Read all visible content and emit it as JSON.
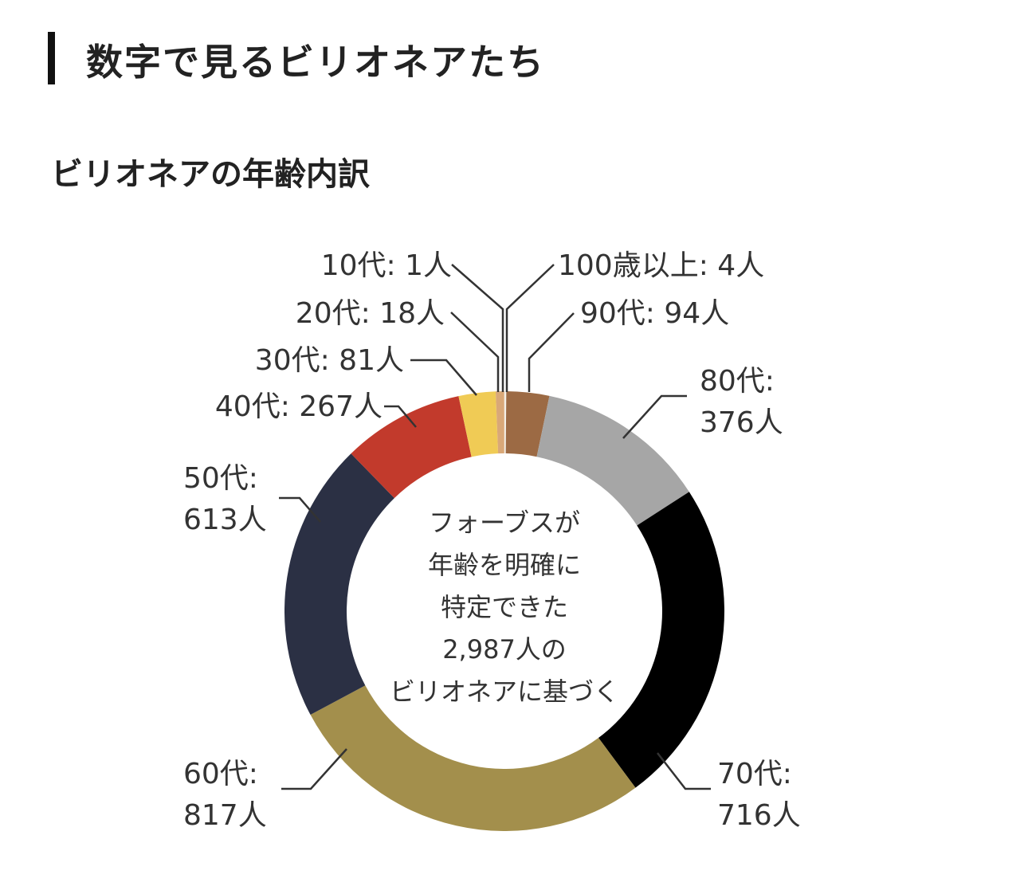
{
  "header": {
    "title": "数字で見るビリオネアたち"
  },
  "chart_data": {
    "type": "pie",
    "variant": "donut",
    "title": "ビリオネアの年齢内訳",
    "center_text": [
      "フォーブスが",
      "年齢を明確に",
      "特定できた",
      "2,987人の",
      "ビリオネアに基づく"
    ],
    "unit": "人",
    "categories": [
      "100歳以上",
      "90代",
      "80代",
      "70代",
      "60代",
      "50代",
      "40代",
      "30代",
      "20代",
      "10代"
    ],
    "values": [
      4,
      94,
      376,
      716,
      817,
      613,
      267,
      81,
      18,
      1
    ],
    "labels": [
      "100歳以上: 4人",
      "90代: 94人",
      "80代:|376人",
      "70代:|716人",
      "60代:|817人",
      "50代:|613人",
      "40代: 267人",
      "30代: 81人",
      "20代: 18人",
      "10代: 1人"
    ],
    "colors": [
      "#f4efe6",
      "#9c6a44",
      "#a6a6a6",
      "#000000",
      "#a38f4c",
      "#2b3044",
      "#c23a2c",
      "#f0cb55",
      "#d9a878",
      "#e9c8a8"
    ],
    "direction": "clockwise from top"
  }
}
